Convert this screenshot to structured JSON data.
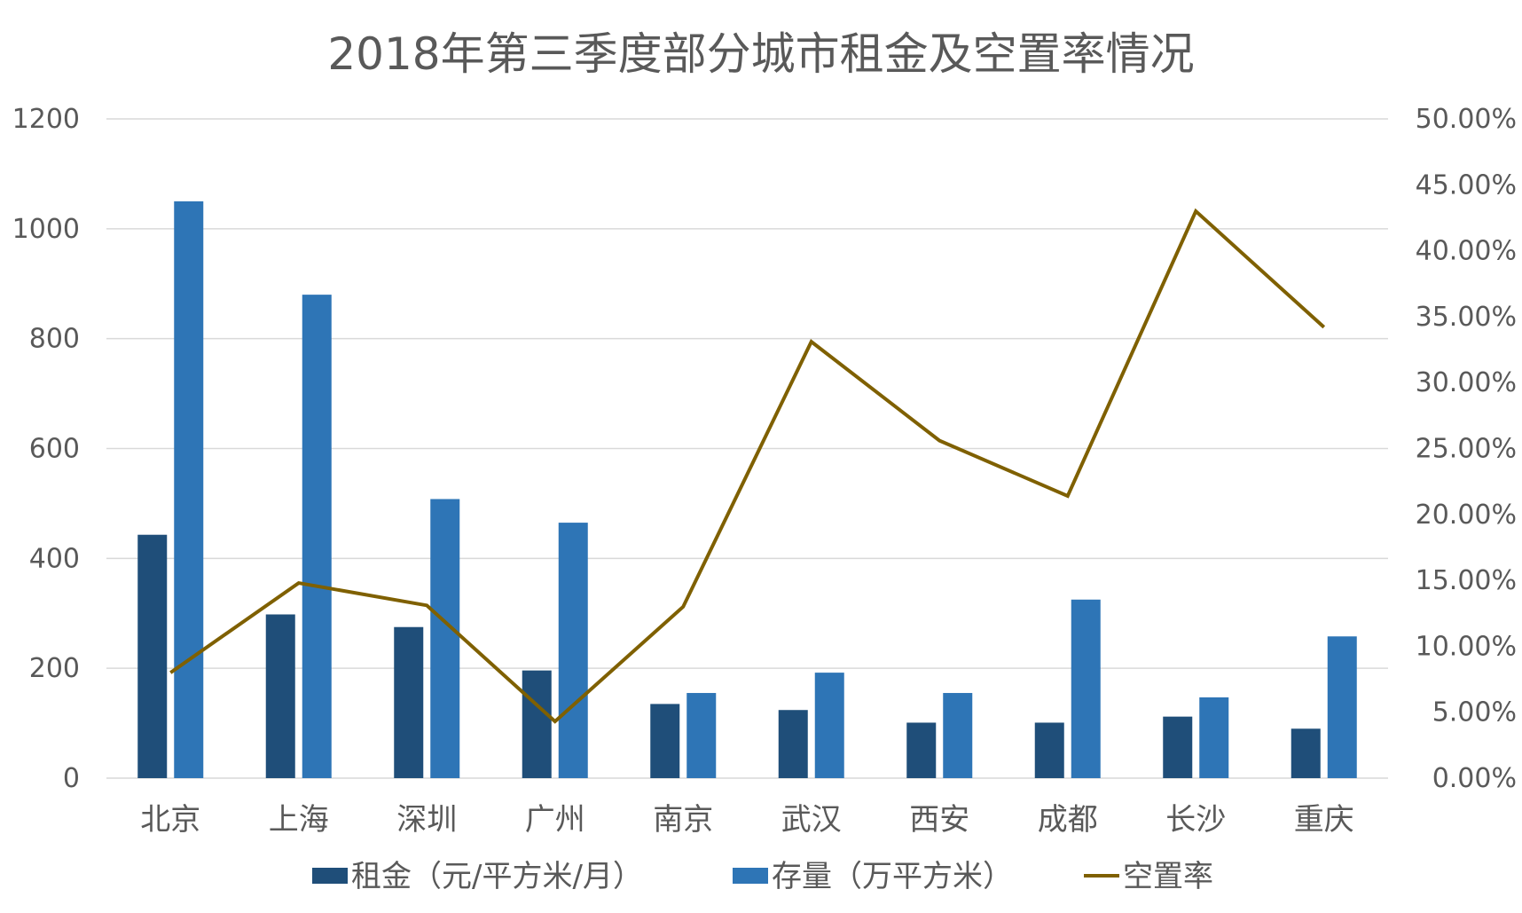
{
  "chart_data": {
    "type": "bar",
    "title": "2018年第三季度部分城市租金及空置率情况",
    "categories": [
      "北京",
      "上海",
      "深圳",
      "广州",
      "南京",
      "武汉",
      "西安",
      "成都",
      "长沙",
      "重庆"
    ],
    "series": [
      {
        "name": "租金（元/平方米/月）",
        "type": "bar",
        "axis": "left",
        "color": "#1f4e79",
        "values": [
          443,
          298,
          275,
          196,
          135,
          124,
          101,
          101,
          112,
          90
        ]
      },
      {
        "name": "存量（万平方米）",
        "type": "bar",
        "axis": "left",
        "color": "#2e75b6",
        "values": [
          1050,
          880,
          508,
          465,
          155,
          192,
          155,
          325,
          147,
          258
        ]
      },
      {
        "name": "空置率",
        "type": "line",
        "axis": "right",
        "color": "#7f6000",
        "values": [
          0.08,
          0.148,
          0.131,
          0.043,
          0.13,
          0.331,
          0.256,
          0.214,
          0.43,
          0.342
        ]
      }
    ],
    "y_left": {
      "lim": [
        0,
        1200
      ],
      "ticks": [
        "0",
        "200",
        "400",
        "600",
        "800",
        "1000",
        "1200"
      ]
    },
    "y_right": {
      "lim": [
        0,
        0.5
      ],
      "ticks": [
        "0.00%",
        "5.00%",
        "10.00%",
        "15.00%",
        "20.00%",
        "25.00%",
        "30.00%",
        "35.00%",
        "40.00%",
        "45.00%",
        "50.00%"
      ]
    },
    "grid": true,
    "legend_position": "bottom"
  }
}
